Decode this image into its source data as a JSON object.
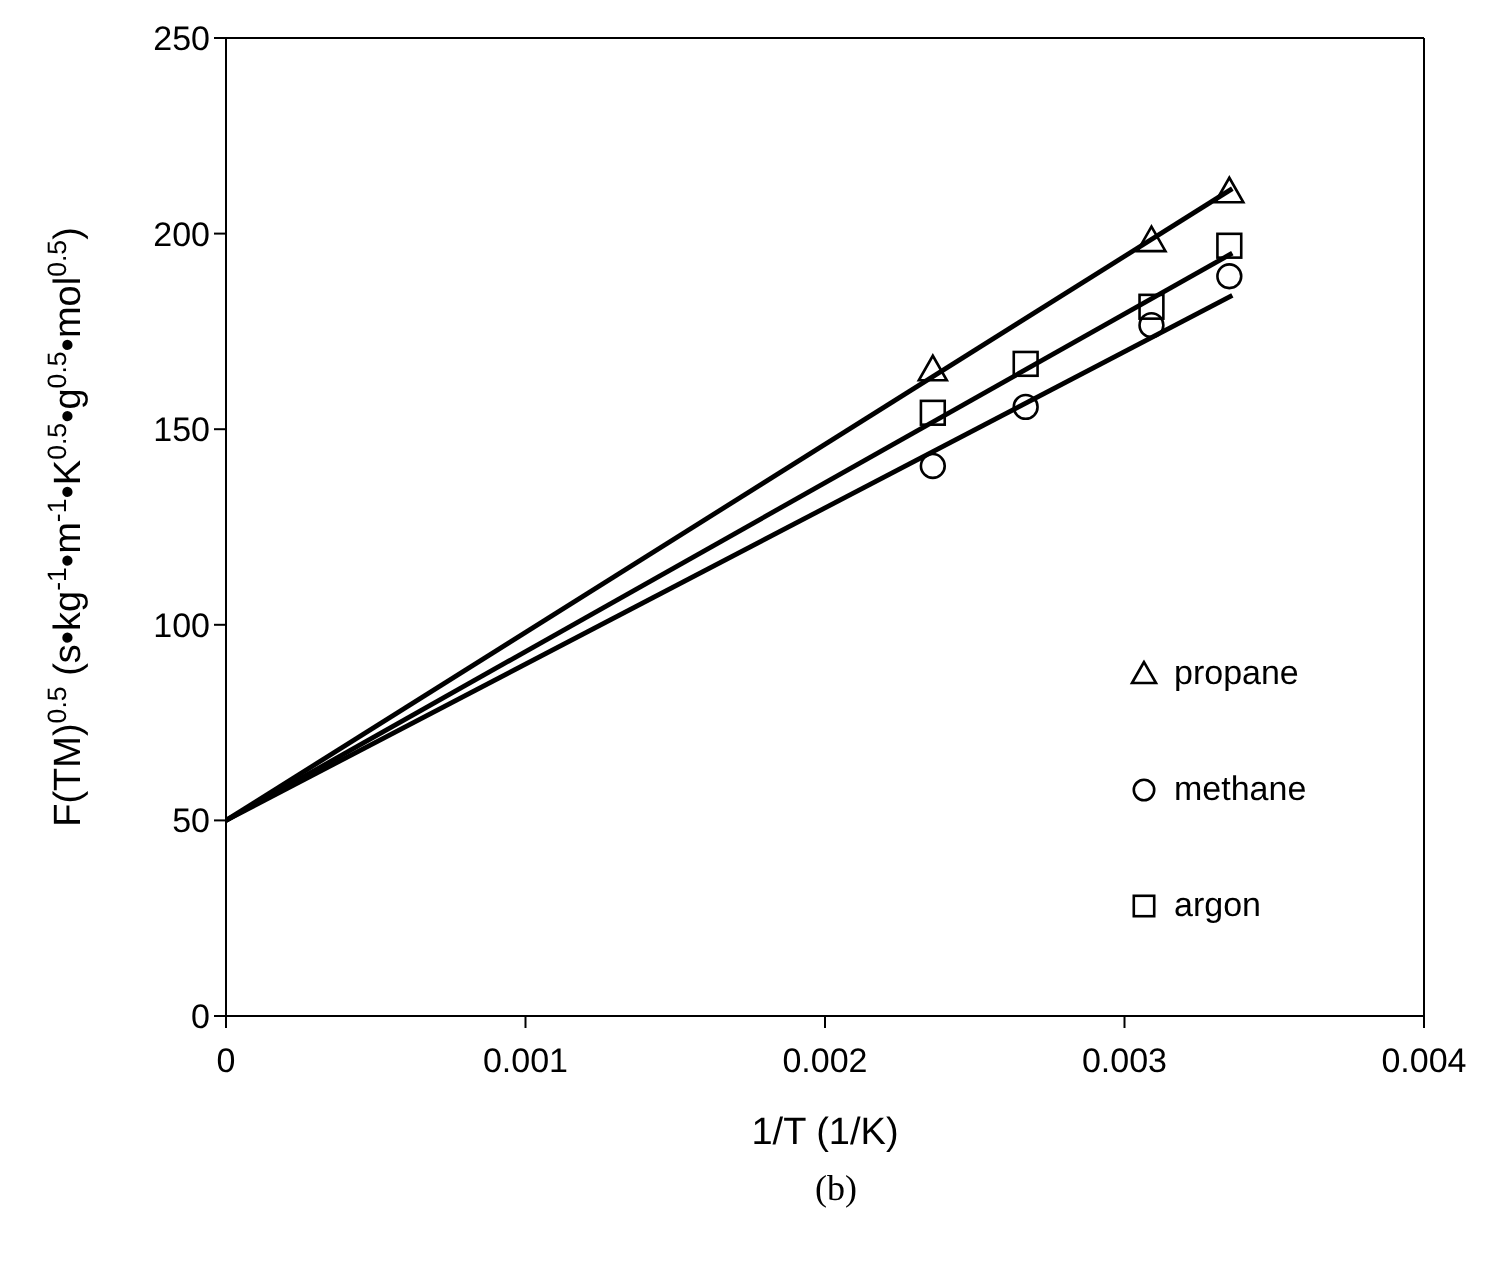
{
  "chart_data": {
    "type": "scatter",
    "xlabel": "1/T (1/K)",
    "ylabel": "F(TM)$^{0.5}$ (s•kg$^{-1}$•m$^{-1}$•K$^{0.5}$•g$^{0.5}$•mol$^{0.5}$)",
    "annotations": [
      "(b)"
    ],
    "x": [
      0.00236,
      0.00267,
      0.00309,
      0.00335
    ],
    "series": [
      {
        "name": "propane",
        "color": "#000000",
        "marker": "triangle",
        "values": [
          165.2,
          198.2,
          210.7
        ],
        "x": [
          0.00236,
          0.00309,
          0.00335
        ]
      },
      {
        "name": "methane",
        "color": "#000000",
        "marker": "circle",
        "values": [
          140.6,
          155.7,
          176.6,
          189.1
        ]
      },
      {
        "name": "argon",
        "color": "#000000",
        "marker": "square",
        "values": [
          154.2,
          166.7,
          181.3,
          196.9
        ]
      },
      {
        "type": "line",
        "color": "#000000",
        "x": [
          0,
          0.00336
        ],
        "values": [
          50,
          211.5
        ]
      },
      {
        "type": "line",
        "color": "#000000",
        "x": [
          0,
          0.00336
        ],
        "values": [
          50,
          195
        ]
      },
      {
        "type": "line",
        "color": "#000000",
        "x": [
          0,
          0.00336
        ],
        "values": [
          50,
          184.2
        ]
      }
    ],
    "xlim": [
      0,
      0.004
    ],
    "xticks": [
      0,
      0.001,
      0.002,
      0.003,
      0.004
    ],
    "ylim": [
      0,
      250
    ],
    "yticks": [
      0,
      50,
      100,
      150,
      200,
      250
    ],
    "legend": "right",
    "line_style": "solid"
  }
}
